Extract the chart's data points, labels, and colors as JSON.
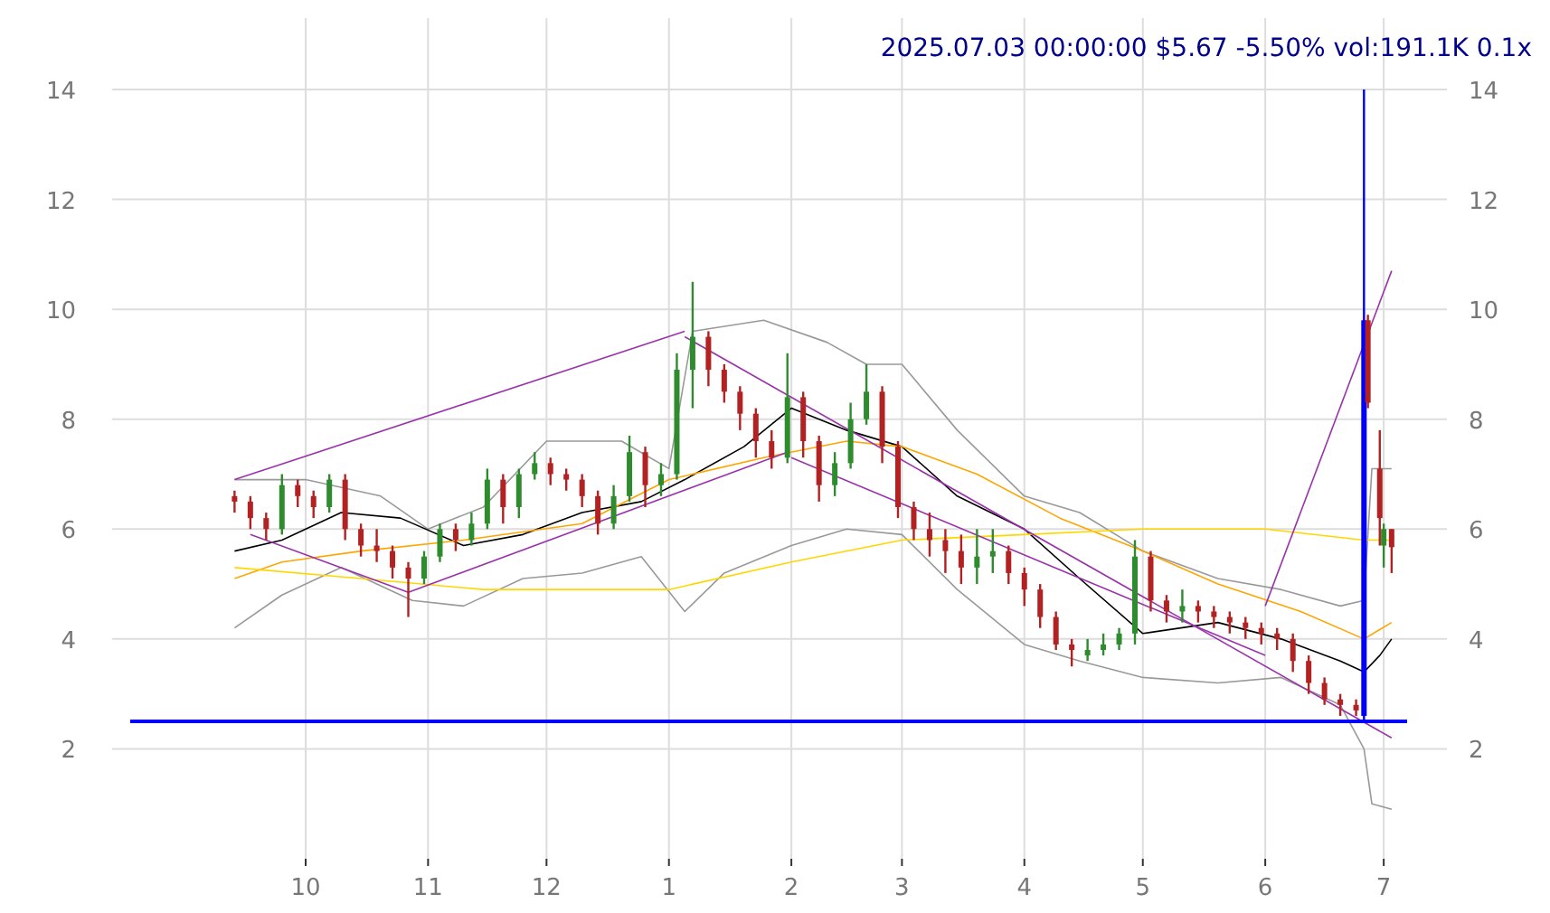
{
  "chart_data": {
    "type": "candlestick",
    "title": "2025.07.03 00:00:00 $5.67 -5.50% vol:191.1K 0.1x",
    "x": [
      "2024-09-13",
      "2024-09-17",
      "2024-09-21",
      "2024-09-25",
      "2024-09-29",
      "2024-10-03",
      "2024-10-07",
      "2024-10-11",
      "2024-10-15",
      "2024-10-19",
      "2024-10-23",
      "2024-10-27",
      "2024-10-31",
      "2024-11-04",
      "2024-11-08",
      "2024-11-12",
      "2024-11-16",
      "2024-11-20",
      "2024-11-24",
      "2024-11-28",
      "2024-12-02",
      "2024-12-06",
      "2024-12-10",
      "2024-12-14",
      "2024-12-18",
      "2024-12-22",
      "2024-12-26",
      "2024-12-30",
      "2025-01-03",
      "2025-01-07",
      "2025-01-11",
      "2025-01-15",
      "2025-01-19",
      "2025-01-23",
      "2025-01-27",
      "2025-01-31",
      "2025-02-04",
      "2025-02-08",
      "2025-02-12",
      "2025-02-16",
      "2025-02-20",
      "2025-02-24",
      "2025-02-28",
      "2025-03-04",
      "2025-03-08",
      "2025-03-12",
      "2025-03-16",
      "2025-03-20",
      "2025-03-24",
      "2025-03-28",
      "2025-04-01",
      "2025-04-05",
      "2025-04-09",
      "2025-04-13",
      "2025-04-17",
      "2025-04-21",
      "2025-04-25",
      "2025-04-29",
      "2025-05-03",
      "2025-05-07",
      "2025-05-11",
      "2025-05-15",
      "2025-05-19",
      "2025-05-23",
      "2025-05-27",
      "2025-05-31",
      "2025-06-04",
      "2025-06-08",
      "2025-06-12",
      "2025-06-16",
      "2025-06-20",
      "2025-06-24",
      "2025-06-26",
      "2025-06-27",
      "2025-06-30",
      "2025-07-01",
      "2025-07-03"
    ],
    "ohlc": [
      [
        6.6,
        6.7,
        6.3,
        6.5
      ],
      [
        6.5,
        6.6,
        6.0,
        6.2
      ],
      [
        6.2,
        6.3,
        5.8,
        6.0
      ],
      [
        6.0,
        7.0,
        5.9,
        6.8
      ],
      [
        6.8,
        6.9,
        6.4,
        6.6
      ],
      [
        6.6,
        6.7,
        6.2,
        6.4
      ],
      [
        6.4,
        7.0,
        6.3,
        6.9
      ],
      [
        6.9,
        7.0,
        5.8,
        6.0
      ],
      [
        6.0,
        6.1,
        5.5,
        5.7
      ],
      [
        5.7,
        6.0,
        5.4,
        5.6
      ],
      [
        5.6,
        5.7,
        5.1,
        5.3
      ],
      [
        5.3,
        5.4,
        4.4,
        5.1
      ],
      [
        5.1,
        5.6,
        5.0,
        5.5
      ],
      [
        5.5,
        6.1,
        5.4,
        6.0
      ],
      [
        6.0,
        6.1,
        5.6,
        5.8
      ],
      [
        5.8,
        6.3,
        5.7,
        6.1
      ],
      [
        6.1,
        7.1,
        6.0,
        6.9
      ],
      [
        6.9,
        7.0,
        6.1,
        6.4
      ],
      [
        6.4,
        7.1,
        6.2,
        7.0
      ],
      [
        7.0,
        7.4,
        6.9,
        7.2
      ],
      [
        7.2,
        7.3,
        6.8,
        7.0
      ],
      [
        7.0,
        7.1,
        6.7,
        6.9
      ],
      [
        6.9,
        7.0,
        6.4,
        6.6
      ],
      [
        6.6,
        6.7,
        5.9,
        6.1
      ],
      [
        6.1,
        6.8,
        6.0,
        6.6
      ],
      [
        6.6,
        7.7,
        6.5,
        7.4
      ],
      [
        7.4,
        7.5,
        6.4,
        6.8
      ],
      [
        6.8,
        7.2,
        6.6,
        7.0
      ],
      [
        7.0,
        9.2,
        6.9,
        8.9
      ],
      [
        8.9,
        10.5,
        8.2,
        9.5
      ],
      [
        9.5,
        9.6,
        8.6,
        8.9
      ],
      [
        8.9,
        9.0,
        8.3,
        8.5
      ],
      [
        8.5,
        8.6,
        7.8,
        8.1
      ],
      [
        8.1,
        8.2,
        7.3,
        7.6
      ],
      [
        7.6,
        7.8,
        7.1,
        7.3
      ],
      [
        7.3,
        9.2,
        7.2,
        8.4
      ],
      [
        8.4,
        8.5,
        7.3,
        7.6
      ],
      [
        7.6,
        7.7,
        6.5,
        6.8
      ],
      [
        6.8,
        7.4,
        6.6,
        7.2
      ],
      [
        7.2,
        8.3,
        7.1,
        8.0
      ],
      [
        8.0,
        9.0,
        7.9,
        8.5
      ],
      [
        8.5,
        8.6,
        7.2,
        7.5
      ],
      [
        7.5,
        7.6,
        6.2,
        6.4
      ],
      [
        6.4,
        6.5,
        5.8,
        6.0
      ],
      [
        6.0,
        6.3,
        5.5,
        5.8
      ],
      [
        5.8,
        6.0,
        5.2,
        5.6
      ],
      [
        5.6,
        5.9,
        5.0,
        5.3
      ],
      [
        5.3,
        6.0,
        5.0,
        5.5
      ],
      [
        5.5,
        6.0,
        5.2,
        5.6
      ],
      [
        5.6,
        5.7,
        5.0,
        5.2
      ],
      [
        5.2,
        5.3,
        4.6,
        4.9
      ],
      [
        4.9,
        5.0,
        4.2,
        4.4
      ],
      [
        4.4,
        4.5,
        3.8,
        3.9
      ],
      [
        3.9,
        4.0,
        3.5,
        3.8
      ],
      [
        3.7,
        4.0,
        3.6,
        3.8
      ],
      [
        3.8,
        4.1,
        3.7,
        3.9
      ],
      [
        3.9,
        4.2,
        3.8,
        4.1
      ],
      [
        4.1,
        5.8,
        3.9,
        5.5
      ],
      [
        5.5,
        5.6,
        4.5,
        4.7
      ],
      [
        4.7,
        4.8,
        4.3,
        4.5
      ],
      [
        4.5,
        4.9,
        4.3,
        4.6
      ],
      [
        4.6,
        4.7,
        4.3,
        4.5
      ],
      [
        4.5,
        4.6,
        4.2,
        4.4
      ],
      [
        4.4,
        4.5,
        4.1,
        4.3
      ],
      [
        4.3,
        4.4,
        4.0,
        4.2
      ],
      [
        4.2,
        4.3,
        3.9,
        4.1
      ],
      [
        4.1,
        4.2,
        3.8,
        4.0
      ],
      [
        4.0,
        4.1,
        3.4,
        3.6
      ],
      [
        3.6,
        3.7,
        3.0,
        3.2
      ],
      [
        3.2,
        3.3,
        2.8,
        2.9
      ],
      [
        2.9,
        3.0,
        2.6,
        2.8
      ],
      [
        2.8,
        2.9,
        2.6,
        2.7
      ],
      [
        2.6,
        14,
        2.5,
        9.8
      ],
      [
        9.8,
        9.9,
        8.2,
        8.3
      ],
      [
        7.1,
        7.8,
        5.7,
        6.2
      ],
      [
        5.7,
        6.1,
        5.3,
        6.0
      ],
      [
        6.0,
        6.0,
        5.2,
        5.67
      ]
    ],
    "colors": [
      "#b22222",
      "#b22222",
      "#b22222",
      "#2e8b2e",
      "#b22222",
      "#b22222",
      "#2e8b2e",
      "#b22222",
      "#b22222",
      "#b22222",
      "#b22222",
      "#b22222",
      "#2e8b2e",
      "#2e8b2e",
      "#b22222",
      "#2e8b2e",
      "#2e8b2e",
      "#b22222",
      "#2e8b2e",
      "#2e8b2e",
      "#b22222",
      "#b22222",
      "#b22222",
      "#b22222",
      "#2e8b2e",
      "#2e8b2e",
      "#b22222",
      "#2e8b2e",
      "#2e8b2e",
      "#2e8b2e",
      "#b22222",
      "#b22222",
      "#b22222",
      "#b22222",
      "#b22222",
      "#2e8b2e",
      "#b22222",
      "#b22222",
      "#2e8b2e",
      "#2e8b2e",
      "#2e8b2e",
      "#b22222",
      "#b22222",
      "#b22222",
      "#b22222",
      "#b22222",
      "#b22222",
      "#2e8b2e",
      "#2e8b2e",
      "#b22222",
      "#b22222",
      "#b22222",
      "#b22222",
      "#b22222",
      "#2e8b2e",
      "#2e8b2e",
      "#2e8b2e",
      "#2e8b2e",
      "#b22222",
      "#b22222",
      "#2e8b2e",
      "#b22222",
      "#b22222",
      "#b22222",
      "#b22222",
      "#b22222",
      "#b22222",
      "#b22222",
      "#b22222",
      "#b22222",
      "#b22222",
      "#b22222",
      "#0000ff",
      "#b22222",
      "#b22222",
      "#2e8b2e",
      "#b22222"
    ],
    "series": [
      {
        "type": "line",
        "color": "#999999",
        "x": [
          "2024-09-13",
          "2024-10-01",
          "2024-10-20",
          "2024-11-01",
          "2024-11-15",
          "2024-12-01",
          "2024-12-20",
          "2025-01-01",
          "2025-01-07",
          "2025-01-25",
          "2025-02-10",
          "2025-02-20",
          "2025-03-01",
          "2025-03-15",
          "2025-04-01",
          "2025-04-15",
          "2025-05-01",
          "2025-05-20",
          "2025-06-05",
          "2025-06-20",
          "2025-06-26",
          "2025-06-28",
          "2025-07-03"
        ],
        "values": [
          6.9,
          6.9,
          6.6,
          6.0,
          6.4,
          7.6,
          7.6,
          7.1,
          9.6,
          9.8,
          9.4,
          9.0,
          9.0,
          7.8,
          6.6,
          6.3,
          5.6,
          5.1,
          4.9,
          4.6,
          4.7,
          7.1,
          7.1
        ]
      },
      {
        "type": "line",
        "color": "#999999",
        "x": [
          "2024-09-13",
          "2024-09-25",
          "2024-10-10",
          "2024-10-28",
          "2024-11-10",
          "2024-11-25",
          "2024-12-10",
          "2024-12-25",
          "2025-01-05",
          "2025-01-15",
          "2025-02-01",
          "2025-02-15",
          "2025-03-01",
          "2025-03-15",
          "2025-04-01",
          "2025-04-15",
          "2025-05-01",
          "2025-05-20",
          "2025-06-05",
          "2025-06-20",
          "2025-06-26",
          "2025-06-28",
          "2025-07-03"
        ],
        "values": [
          4.2,
          4.8,
          5.3,
          4.7,
          4.6,
          5.1,
          5.2,
          5.5,
          4.5,
          5.2,
          5.7,
          6.0,
          5.9,
          4.9,
          3.9,
          3.6,
          3.3,
          3.2,
          3.3,
          2.8,
          2.0,
          1.0,
          0.9
        ]
      },
      {
        "type": "line",
        "color": "#000000",
        "x": [
          "2024-09-13",
          "2024-09-25",
          "2024-10-10",
          "2024-10-25",
          "2024-11-10",
          "2024-11-25",
          "2024-12-10",
          "2024-12-25",
          "2025-01-05",
          "2025-01-20",
          "2025-02-01",
          "2025-02-15",
          "2025-03-01",
          "2025-03-15",
          "2025-04-01",
          "2025-04-15",
          "2025-05-01",
          "2025-05-20",
          "2025-06-05",
          "2025-06-20",
          "2025-06-26",
          "2025-06-30",
          "2025-07-03"
        ],
        "values": [
          5.6,
          5.8,
          6.3,
          6.2,
          5.7,
          5.9,
          6.3,
          6.5,
          6.9,
          7.5,
          8.2,
          7.8,
          7.5,
          6.6,
          6.0,
          5.1,
          4.1,
          4.3,
          4.0,
          3.6,
          3.4,
          3.7,
          4.0
        ]
      },
      {
        "type": "line",
        "color": "#ffa500",
        "x": [
          "2024-09-13",
          "2024-09-25",
          "2024-10-15",
          "2024-11-10",
          "2024-12-10",
          "2025-01-01",
          "2025-01-25",
          "2025-02-15",
          "2025-03-01",
          "2025-03-20",
          "2025-04-10",
          "2025-05-01",
          "2025-05-20",
          "2025-06-10",
          "2025-06-26",
          "2025-07-03"
        ],
        "values": [
          5.1,
          5.4,
          5.6,
          5.8,
          6.1,
          6.9,
          7.3,
          7.6,
          7.5,
          7.0,
          6.2,
          5.6,
          5.0,
          4.5,
          4.0,
          4.3
        ]
      },
      {
        "type": "line",
        "color": "#ffd700",
        "x": [
          "2024-09-13",
          "2024-10-15",
          "2024-11-15",
          "2024-12-15",
          "2025-01-01",
          "2025-02-01",
          "2025-03-01",
          "2025-04-01",
          "2025-05-01",
          "2025-06-01",
          "2025-06-26",
          "2025-07-03"
        ],
        "values": [
          5.3,
          5.1,
          4.9,
          4.9,
          4.9,
          5.4,
          5.8,
          5.9,
          6.0,
          6.0,
          5.8,
          5.8
        ]
      },
      {
        "type": "line",
        "color": "#9933aa",
        "x": [
          "2024-09-13",
          "2025-01-05"
        ],
        "values": [
          6.9,
          9.6
        ]
      },
      {
        "type": "line",
        "color": "#9933aa",
        "x": [
          "2025-01-05",
          "2025-07-03"
        ],
        "values": [
          9.5,
          2.2
        ]
      },
      {
        "type": "line",
        "color": "#9933aa",
        "x": [
          "2024-09-17",
          "2024-10-27"
        ],
        "values": [
          5.9,
          4.85
        ]
      },
      {
        "type": "line",
        "color": "#9933aa",
        "x": [
          "2024-10-27",
          "2025-01-31"
        ],
        "values": [
          4.85,
          7.4
        ]
      },
      {
        "type": "line",
        "color": "#9933aa",
        "x": [
          "2025-02-01",
          "2025-06-01"
        ],
        "values": [
          7.3,
          3.7
        ]
      },
      {
        "type": "line",
        "color": "#9933aa",
        "x": [
          "2025-06-01",
          "2025-07-03"
        ],
        "values": [
          4.6,
          10.7
        ]
      }
    ],
    "ref_lines": [
      {
        "axis": "y",
        "value": 2.5,
        "color": "#0000ff"
      }
    ],
    "xlim": [
      "2024-08-13",
      "2025-07-17"
    ],
    "xticks": [
      {
        "value": "2024-10-01",
        "label": "10"
      },
      {
        "value": "2024-11-01",
        "label": "11"
      },
      {
        "value": "2024-12-01",
        "label": "12"
      },
      {
        "value": "2025-01-01",
        "label": "1"
      },
      {
        "value": "2025-02-01",
        "label": "2"
      },
      {
        "value": "2025-03-01",
        "label": "3"
      },
      {
        "value": "2025-04-01",
        "label": "4"
      },
      {
        "value": "2025-05-01",
        "label": "5"
      },
      {
        "value": "2025-06-01",
        "label": "6"
      },
      {
        "value": "2025-07-01",
        "label": "7"
      }
    ],
    "ylim": [
      0,
      15.3
    ],
    "yticks": [
      2,
      4,
      6,
      8,
      10,
      12,
      14
    ],
    "y2lim": [
      0,
      15.3
    ],
    "y2ticks": [
      2,
      4,
      6,
      8,
      10,
      12,
      14
    ],
    "grid": true,
    "line_style": "solid"
  }
}
